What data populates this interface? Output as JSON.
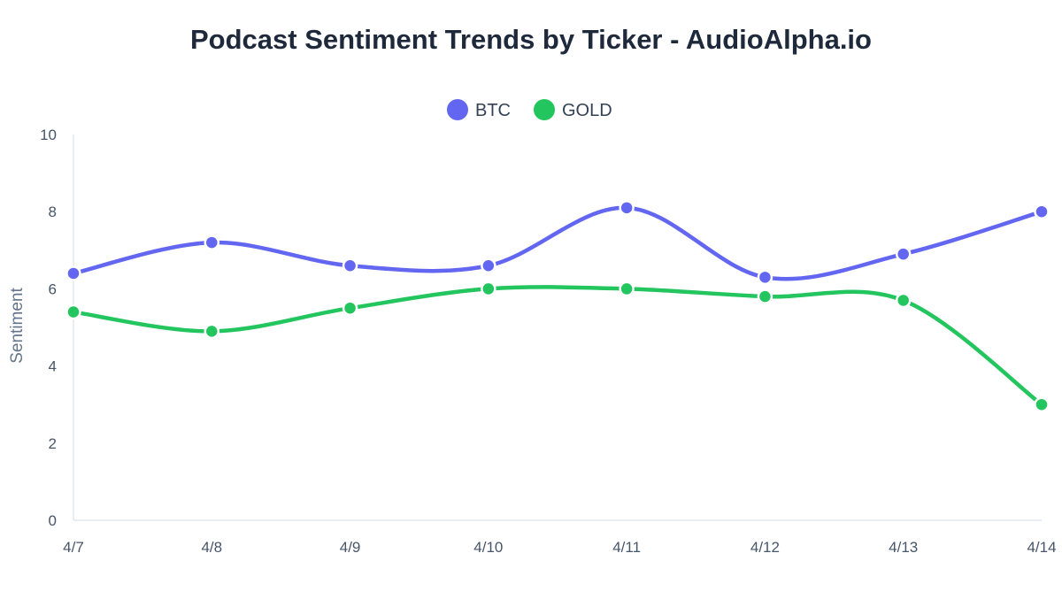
{
  "chart_data": {
    "type": "line",
    "title": "Podcast Sentiment Trends by Ticker - AudioAlpha.io",
    "xlabel": "",
    "ylabel": "Sentiment",
    "categories": [
      "4/7",
      "4/8",
      "4/9",
      "4/10",
      "4/11",
      "4/12",
      "4/13",
      "4/14"
    ],
    "ylim": [
      0,
      10
    ],
    "yticks": [
      "0",
      "2",
      "4",
      "6",
      "8",
      "10"
    ],
    "grid": false,
    "legend_position": "top-center",
    "series": [
      {
        "name": "BTC",
        "color": "#6366f1",
        "values": [
          6.4,
          7.2,
          6.6,
          6.6,
          8.1,
          6.3,
          6.9,
          8.0
        ]
      },
      {
        "name": "GOLD",
        "color": "#22c55e",
        "values": [
          5.4,
          4.9,
          5.5,
          6.0,
          6.0,
          5.8,
          5.7,
          3.0
        ]
      }
    ]
  }
}
